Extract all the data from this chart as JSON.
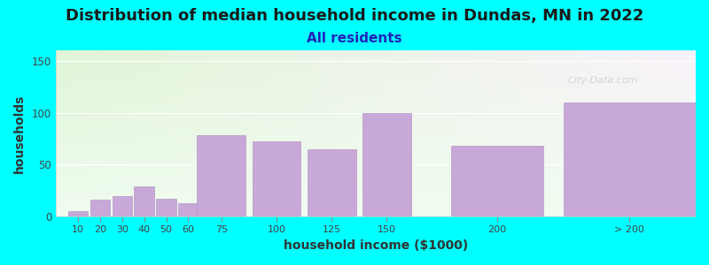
{
  "title": "Distribution of median household income in Dundas, MN in 2022",
  "subtitle": "All residents",
  "xlabel": "household income ($1000)",
  "ylabel": "households",
  "bar_labels": [
    "10",
    "20",
    "30",
    "40",
    "50",
    "60",
    "75",
    "100",
    "125",
    "150",
    "200",
    "> 200"
  ],
  "bar_values": [
    5,
    16,
    20,
    29,
    17,
    13,
    78,
    72,
    65,
    100,
    68,
    110
  ],
  "bar_color": "#c8a8d8",
  "bar_edge_color": "#b898c8",
  "bg_color": "#00ffff",
  "ylim": [
    0,
    160
  ],
  "yticks": [
    0,
    50,
    100,
    150
  ],
  "title_fontsize": 13,
  "subtitle_fontsize": 11,
  "axis_label_fontsize": 10,
  "tick_fontsize": 8,
  "watermark_text": "City-Data.com",
  "bar_centers": [
    10,
    20,
    30,
    40,
    50,
    60,
    75,
    100,
    125,
    150,
    200,
    260
  ],
  "bar_widths": [
    9,
    9,
    9,
    9,
    9,
    9,
    22,
    22,
    22,
    22,
    42,
    60
  ],
  "tick_positions": [
    10,
    20,
    30,
    40,
    50,
    60,
    75,
    100,
    125,
    150,
    200,
    260
  ],
  "xlim": [
    0,
    290
  ]
}
